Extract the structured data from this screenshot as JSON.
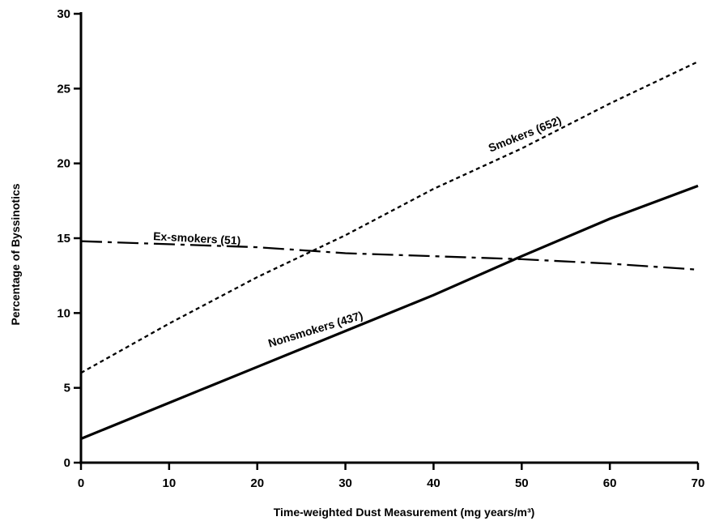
{
  "chart_data": {
    "type": "line",
    "title": "",
    "xlabel": "Time-weighted Dust Measurement (mg years/m³)",
    "ylabel": "Percentage of Byssinotics",
    "xlim": [
      0,
      70
    ],
    "ylim": [
      0,
      30
    ],
    "x_ticks": [
      0,
      10,
      20,
      30,
      40,
      50,
      60,
      70
    ],
    "y_ticks": [
      0,
      5,
      10,
      15,
      20,
      25,
      30
    ],
    "grid": false,
    "series": [
      {
        "name": "Smokers (652)",
        "style": "dotted",
        "x": [
          0,
          10,
          20,
          30,
          40,
          50,
          60,
          70
        ],
        "y": [
          6.0,
          9.3,
          12.4,
          15.2,
          18.3,
          21.0,
          24.0,
          26.8
        ]
      },
      {
        "name": "Nonsmokers (437)",
        "style": "solid",
        "x": [
          0,
          10,
          20,
          30,
          40,
          50,
          60,
          70
        ],
        "y": [
          1.6,
          4.0,
          6.4,
          8.8,
          11.2,
          13.8,
          16.3,
          18.5
        ]
      },
      {
        "name": "Ex-smokers (51)",
        "style": "dash-dot",
        "x": [
          0,
          10,
          20,
          30,
          40,
          50,
          60,
          70
        ],
        "y": [
          14.8,
          14.6,
          14.4,
          14.0,
          13.8,
          13.6,
          13.3,
          12.9
        ]
      }
    ]
  }
}
